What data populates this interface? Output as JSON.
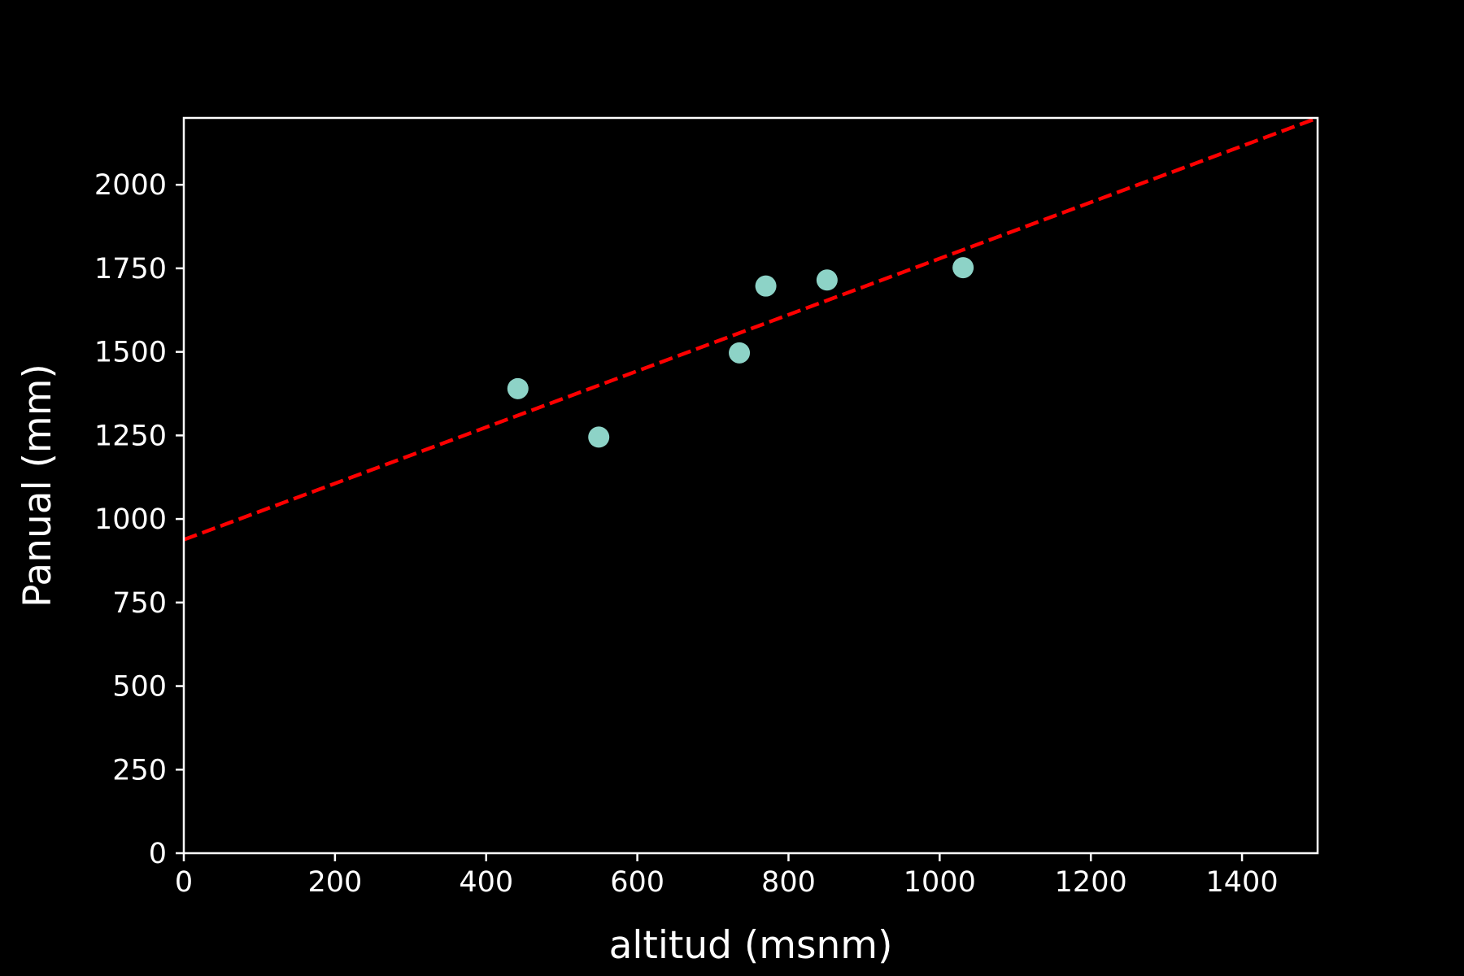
{
  "chart_data": {
    "type": "scatter",
    "title": "",
    "xlabel": "altitud (msnm)",
    "ylabel": "Panual (mm)",
    "xlim": [
      0,
      1500
    ],
    "ylim": [
      0,
      2200
    ],
    "xticks": [
      0,
      200,
      400,
      600,
      800,
      1000,
      1200,
      1400
    ],
    "yticks": [
      0,
      250,
      500,
      750,
      1000,
      1250,
      1500,
      1750,
      2000
    ],
    "grid": false,
    "series": [
      {
        "kind": "points",
        "color": "#8dd3c7",
        "points": [
          {
            "x": 442,
            "y": 1390
          },
          {
            "x": 549,
            "y": 1245
          },
          {
            "x": 735,
            "y": 1497
          },
          {
            "x": 770,
            "y": 1697
          },
          {
            "x": 851,
            "y": 1715
          },
          {
            "x": 1031,
            "y": 1752
          }
        ]
      },
      {
        "kind": "fit-line",
        "color": "#ff0000",
        "style": "dashed",
        "points": [
          {
            "x": 0,
            "y": 938
          },
          {
            "x": 1500,
            "y": 2200
          }
        ]
      }
    ],
    "colors": {
      "background": "#000000",
      "axes": "#ffffff",
      "text": "#ffffff"
    }
  }
}
